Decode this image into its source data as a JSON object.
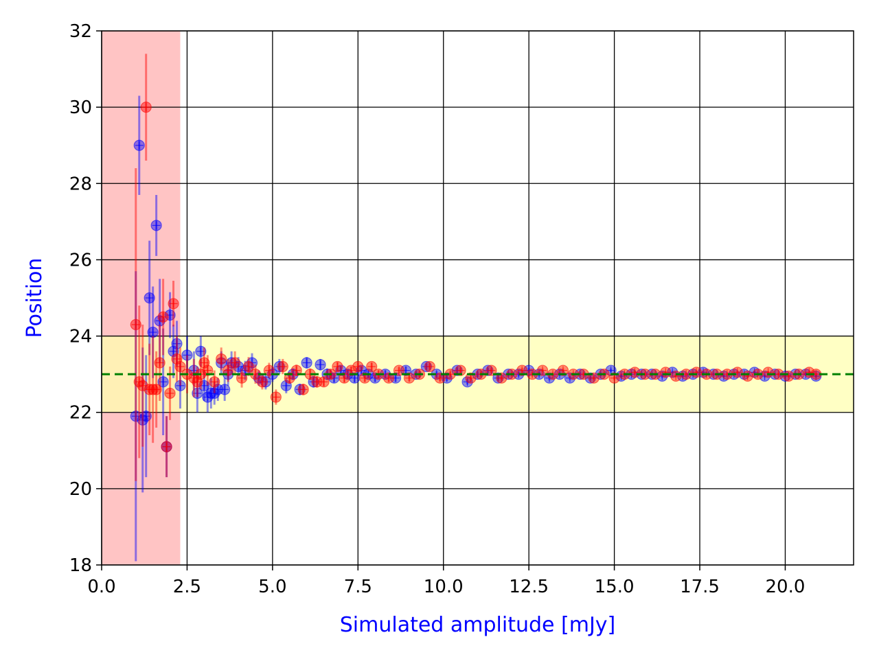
{
  "chart_data": {
    "type": "scatter",
    "title": "",
    "xlabel": "Simulated amplitude [mJy]",
    "ylabel": "Position",
    "xlim": [
      0,
      22
    ],
    "ylim": [
      18,
      32
    ],
    "xticks": [
      0,
      2.5,
      5,
      7.5,
      10,
      12.5,
      15,
      17.5,
      20
    ],
    "xtick_labels": [
      "0.0",
      "2.5",
      "5.0",
      "7.5",
      "10.0",
      "12.5",
      "15.0",
      "17.5",
      "20.0"
    ],
    "yticks": [
      18,
      20,
      22,
      24,
      26,
      28,
      30,
      32
    ],
    "ytick_labels": [
      "18",
      "20",
      "22",
      "24",
      "26",
      "28",
      "30",
      "32"
    ],
    "grid": true,
    "axis_label_color": "#0000ff",
    "reference_line": {
      "y": 23,
      "style": "dashed",
      "color": "#008000"
    },
    "bands": [
      {
        "orientation": "vertical",
        "from": 0,
        "to": 2.3,
        "color": "#ffb0b0"
      },
      {
        "orientation": "horizontal",
        "from": 22,
        "to": 24,
        "color": "#ffffb0"
      }
    ],
    "series": [
      {
        "color": "#0000ff",
        "x": [
          1.0,
          1.1,
          1.2,
          1.3,
          1.4,
          1.5,
          1.6,
          1.7,
          1.8,
          1.9,
          2.0,
          2.1,
          2.2,
          2.3,
          2.5,
          2.7,
          2.8,
          2.9,
          3.0,
          3.1,
          3.2,
          3.3,
          3.4,
          3.5,
          3.6,
          3.7,
          3.8,
          4.0,
          4.2,
          4.4,
          4.6,
          4.8,
          5.0,
          5.2,
          5.4,
          5.6,
          5.8,
          6.0,
          6.2,
          6.4,
          6.6,
          6.8,
          7.0,
          7.2,
          7.4,
          7.6,
          7.8,
          8.0,
          8.3,
          8.6,
          8.9,
          9.2,
          9.5,
          9.8,
          10.1,
          10.4,
          10.7,
          11.0,
          11.3,
          11.6,
          11.9,
          12.2,
          12.5,
          12.8,
          13.1,
          13.4,
          13.7,
          14.0,
          14.3,
          14.6,
          14.9,
          15.2,
          15.5,
          15.8,
          16.1,
          16.4,
          16.7,
          17.0,
          17.3,
          17.6,
          17.9,
          18.2,
          18.5,
          18.8,
          19.1,
          19.4,
          19.7,
          20.0,
          20.3,
          20.6,
          20.9
        ],
        "y": [
          21.9,
          29.0,
          21.8,
          21.9,
          25.0,
          24.1,
          26.9,
          24.4,
          22.8,
          21.1,
          24.55,
          23.6,
          23.8,
          22.7,
          23.5,
          23.1,
          22.5,
          23.6,
          22.7,
          22.4,
          22.5,
          22.5,
          22.6,
          23.3,
          22.6,
          23.0,
          23.3,
          23.2,
          23.1,
          23.3,
          22.9,
          22.8,
          23.0,
          23.2,
          22.7,
          23.0,
          22.6,
          23.3,
          22.8,
          23.25,
          23.0,
          22.9,
          23.1,
          23.0,
          22.9,
          23.1,
          23.0,
          22.9,
          23.0,
          22.9,
          23.1,
          23.0,
          23.2,
          23.0,
          22.9,
          23.1,
          22.8,
          23.0,
          23.1,
          22.9,
          23.0,
          23.0,
          23.1,
          23.0,
          22.9,
          23.0,
          22.9,
          23.0,
          22.9,
          23.0,
          23.1,
          22.95,
          23.0,
          23.0,
          23.0,
          22.95,
          23.05,
          22.95,
          23.0,
          23.05,
          23.0,
          22.95,
          23.0,
          23.0,
          23.05,
          22.95,
          23.0,
          22.95,
          23.0,
          23.0,
          22.95
        ],
        "err": [
          3.8,
          1.3,
          1.9,
          1.6,
          1.5,
          1.2,
          0.8,
          1.1,
          1.4,
          0.8,
          0.6,
          0.7,
          0.6,
          0.6,
          0.5,
          0.5,
          0.5,
          0.4,
          0.4,
          0.4,
          0.4,
          0.3,
          0.3,
          0.3,
          0.3,
          0.3,
          0.3,
          0.25,
          0.25,
          0.25,
          0.2,
          0.2,
          0.2,
          0.2,
          0.2,
          0.15,
          0.15,
          0.15,
          0.15,
          0.15,
          0.15,
          0.12,
          0.12,
          0.12,
          0.12,
          0.1,
          0.1,
          0.1,
          0.1,
          0.1,
          0.1,
          0.08,
          0.08,
          0.08,
          0.08,
          0.08,
          0.07,
          0.07,
          0.07,
          0.07,
          0.06,
          0.06,
          0.06,
          0.06,
          0.06,
          0.05,
          0.05,
          0.05,
          0.05,
          0.05,
          0.05,
          0.05,
          0.05,
          0.05,
          0.05,
          0.05,
          0.04,
          0.04,
          0.04,
          0.04,
          0.04,
          0.04,
          0.04,
          0.04,
          0.04,
          0.04,
          0.04,
          0.04,
          0.04,
          0.04,
          0.04
        ]
      },
      {
        "color": "#ff0000",
        "x": [
          1.0,
          1.1,
          1.2,
          1.3,
          1.4,
          1.5,
          1.6,
          1.7,
          1.8,
          1.9,
          2.0,
          2.1,
          2.2,
          2.3,
          2.5,
          2.7,
          2.8,
          2.9,
          3.0,
          3.1,
          3.3,
          3.5,
          3.7,
          3.9,
          4.1,
          4.3,
          4.5,
          4.7,
          4.9,
          5.1,
          5.3,
          5.5,
          5.7,
          5.9,
          6.1,
          6.3,
          6.5,
          6.7,
          6.9,
          7.1,
          7.3,
          7.5,
          7.7,
          7.9,
          8.1,
          8.4,
          8.7,
          9.0,
          9.3,
          9.6,
          9.9,
          10.2,
          10.5,
          10.8,
          11.1,
          11.4,
          11.7,
          12.0,
          12.3,
          12.6,
          12.9,
          13.2,
          13.5,
          13.8,
          14.1,
          14.4,
          14.7,
          15.0,
          15.3,
          15.6,
          15.9,
          16.2,
          16.5,
          16.8,
          17.1,
          17.4,
          17.7,
          18.0,
          18.3,
          18.6,
          18.9,
          19.2,
          19.5,
          19.8,
          20.1,
          20.4,
          20.7,
          20.9
        ],
        "y": [
          24.3,
          22.8,
          22.7,
          30.0,
          22.6,
          22.6,
          22.6,
          23.3,
          24.5,
          21.1,
          22.5,
          24.85,
          23.4,
          23.2,
          23.0,
          22.9,
          22.8,
          23.0,
          23.3,
          23.1,
          22.8,
          23.4,
          23.1,
          23.3,
          22.9,
          23.2,
          23.0,
          22.8,
          23.1,
          22.4,
          23.2,
          22.9,
          23.1,
          22.6,
          23.0,
          22.8,
          22.8,
          23.0,
          23.2,
          22.9,
          23.1,
          23.2,
          22.9,
          23.2,
          23.0,
          22.9,
          23.1,
          22.9,
          23.0,
          23.2,
          22.9,
          23.0,
          23.1,
          22.9,
          23.0,
          23.1,
          22.9,
          23.0,
          23.1,
          23.0,
          23.1,
          23.0,
          23.1,
          23.0,
          23.0,
          22.9,
          23.0,
          22.9,
          23.0,
          23.05,
          23.0,
          23.0,
          23.05,
          22.95,
          23.0,
          23.05,
          23.0,
          23.0,
          23.0,
          23.05,
          22.95,
          23.0,
          23.05,
          23.0,
          22.95,
          23.0,
          23.05,
          23.0
        ],
        "err": [
          4.1,
          2.0,
          1.6,
          1.4,
          1.2,
          1.4,
          1.0,
          1.0,
          1.0,
          0.8,
          0.7,
          0.6,
          0.6,
          0.5,
          0.5,
          0.5,
          0.4,
          0.4,
          0.4,
          0.4,
          0.3,
          0.3,
          0.3,
          0.3,
          0.25,
          0.25,
          0.25,
          0.2,
          0.2,
          0.2,
          0.2,
          0.15,
          0.15,
          0.15,
          0.15,
          0.15,
          0.12,
          0.12,
          0.12,
          0.12,
          0.1,
          0.1,
          0.1,
          0.1,
          0.1,
          0.1,
          0.08,
          0.08,
          0.08,
          0.08,
          0.08,
          0.07,
          0.07,
          0.07,
          0.07,
          0.06,
          0.06,
          0.06,
          0.06,
          0.06,
          0.05,
          0.05,
          0.05,
          0.05,
          0.05,
          0.05,
          0.05,
          0.05,
          0.05,
          0.05,
          0.05,
          0.04,
          0.04,
          0.04,
          0.04,
          0.04,
          0.04,
          0.04,
          0.04,
          0.04,
          0.04,
          0.04,
          0.04,
          0.04,
          0.04,
          0.04,
          0.04,
          0.04
        ]
      }
    ]
  }
}
